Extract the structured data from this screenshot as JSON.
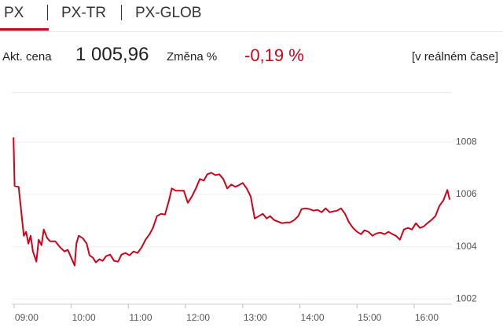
{
  "tabs": [
    "PX",
    "PX-TR",
    "PX-GLOB"
  ],
  "quote": {
    "price_label": "Akt. cena",
    "price": "1 005,96",
    "change_label": "Změna %",
    "change": "-0,19 %",
    "realtime": "[v reálném čase]"
  },
  "chart_data": {
    "type": "line",
    "color": "#d0021b",
    "x": [
      8.99,
      9.01,
      9.08,
      9.12,
      9.17,
      9.21,
      9.25,
      9.29,
      9.33,
      9.39,
      9.43,
      9.48,
      9.52,
      9.58,
      9.63,
      9.72,
      9.81,
      9.88,
      9.94,
      10.0,
      10.06,
      10.09,
      10.13,
      10.2,
      10.27,
      10.32,
      10.38,
      10.43,
      10.49,
      10.55,
      10.61,
      10.68,
      10.75,
      10.82,
      10.88,
      10.95,
      11.02,
      11.09,
      11.16,
      11.23,
      11.3,
      11.37,
      11.43,
      11.5,
      11.57,
      11.64,
      11.71,
      11.76,
      11.83,
      11.9,
      11.97,
      12.04,
      12.11,
      12.18,
      12.25,
      12.32,
      12.38,
      12.45,
      12.52,
      12.59,
      12.66,
      12.73,
      12.8,
      12.87,
      12.93,
      13.0,
      13.07,
      13.14,
      13.21,
      13.28,
      13.35,
      13.42,
      13.48,
      13.55,
      13.62,
      13.69,
      13.76,
      13.83,
      13.9,
      13.97,
      14.03,
      14.1,
      14.17,
      14.24,
      14.31,
      14.38,
      14.45,
      14.52,
      14.58,
      14.65,
      14.72,
      14.79,
      14.86,
      14.93,
      15.0,
      15.07,
      15.13,
      15.2,
      15.27,
      15.34,
      15.41,
      15.48,
      15.55,
      15.62,
      15.68,
      15.75,
      15.82,
      15.89,
      15.96,
      16.03,
      16.1,
      16.17,
      16.23,
      16.3,
      16.37,
      16.44,
      16.51,
      16.58,
      16.62
    ],
    "values": [
      1008.18,
      1006.32,
      1006.29,
      1005.47,
      1004.42,
      1004.57,
      1004.12,
      1004.42,
      1003.82,
      1003.43,
      1004.27,
      1004.06,
      1004.66,
      1004.33,
      1004.21,
      1004.21,
      1003.97,
      1003.82,
      1003.88,
      1003.58,
      1003.28,
      1004.12,
      1004.42,
      1004.33,
      1004.12,
      1003.67,
      1003.58,
      1003.4,
      1003.52,
      1003.46,
      1003.64,
      1003.7,
      1003.46,
      1003.43,
      1003.7,
      1003.76,
      1003.67,
      1003.82,
      1003.76,
      1003.97,
      1004.27,
      1004.48,
      1004.72,
      1005.17,
      1005.26,
      1005.23,
      1005.77,
      1006.23,
      1006.14,
      1006.14,
      1006.14,
      1005.68,
      1005.92,
      1006.23,
      1006.59,
      1006.53,
      1006.77,
      1006.83,
      1006.74,
      1006.77,
      1006.59,
      1006.23,
      1006.38,
      1006.29,
      1006.35,
      1006.44,
      1006.23,
      1005.92,
      1005.08,
      1005.17,
      1005.26,
      1005.08,
      1005.17,
      1005.02,
      1004.96,
      1004.9,
      1004.93,
      1004.93,
      1005.02,
      1005.17,
      1005.44,
      1005.47,
      1005.44,
      1005.38,
      1005.41,
      1005.32,
      1005.47,
      1005.32,
      1005.35,
      1005.38,
      1005.47,
      1005.26,
      1004.93,
      1004.72,
      1004.57,
      1004.48,
      1004.63,
      1004.57,
      1004.42,
      1004.51,
      1004.54,
      1004.48,
      1004.57,
      1004.48,
      1004.42,
      1004.27,
      1004.66,
      1004.72,
      1004.66,
      1004.9,
      1004.72,
      1004.78,
      1004.9,
      1005.02,
      1005.17,
      1005.56,
      1005.77,
      1006.17,
      1005.8
    ],
    "xlim": [
      8.96,
      16.66
    ],
    "xticks": [
      {
        "value": 9,
        "label": "09:00"
      },
      {
        "value": 10,
        "label": "10:00"
      },
      {
        "value": 11,
        "label": "11:00"
      },
      {
        "value": 12,
        "label": "12:00"
      },
      {
        "value": 13,
        "label": "13:00"
      },
      {
        "value": 14,
        "label": "14:00"
      },
      {
        "value": 15,
        "label": "15:00"
      },
      {
        "value": 16,
        "label": "16:00"
      }
    ],
    "ylim": [
      1001.8,
      1009.9
    ],
    "yticks": [
      1002,
      1004,
      1006,
      1008
    ]
  }
}
